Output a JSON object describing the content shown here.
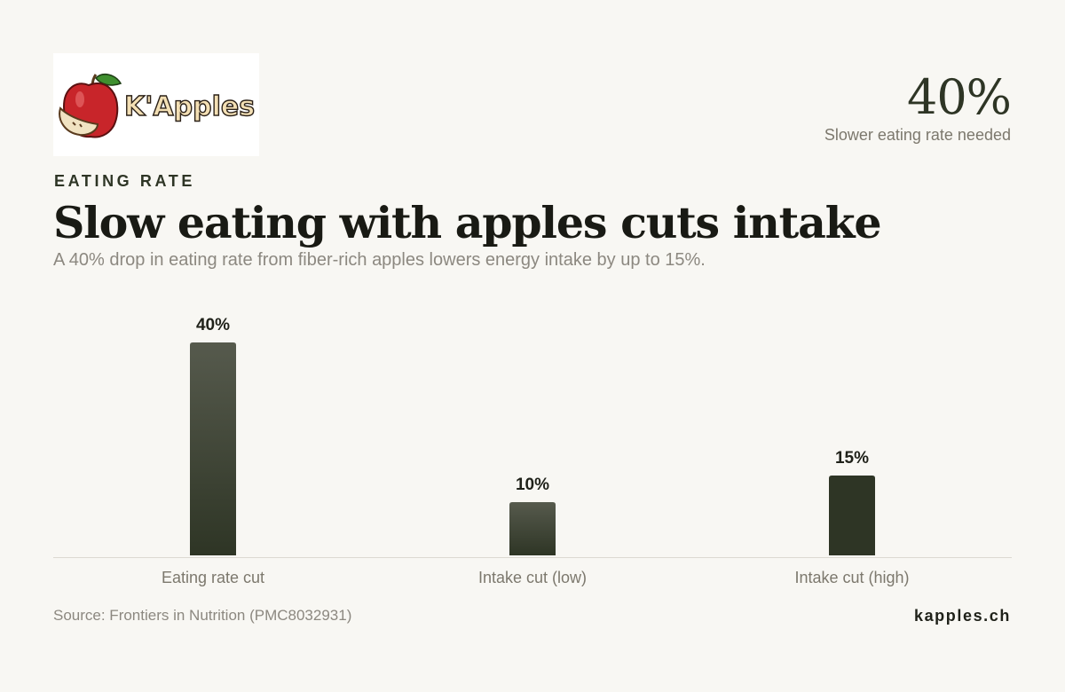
{
  "logo": {
    "text": "K'Apples"
  },
  "headline_stat": {
    "value": "40%",
    "label": "Slower eating rate needed"
  },
  "kicker": "EATING RATE",
  "title": "Slow eating with apples cuts intake",
  "subtitle": "A 40% drop in eating rate from fiber-rich apples lowers energy intake by up to 15%.",
  "source": "Source: Frontiers in Nutrition (PMC8032931)",
  "brand": "kapples.ch",
  "colors": {
    "bar_top": "#565a4d",
    "bar_bottom": "#2e3525",
    "axis": "#dcd9d2",
    "background": "#f8f7f3"
  },
  "chart_data": {
    "type": "bar",
    "categories": [
      "Eating rate cut",
      "Intake cut (low)",
      "Intake cut (high)"
    ],
    "values": [
      40,
      10,
      15
    ],
    "value_labels": [
      "40%",
      "10%",
      "15%"
    ],
    "ylim": [
      0,
      40
    ],
    "grid": false,
    "legend": "none"
  }
}
